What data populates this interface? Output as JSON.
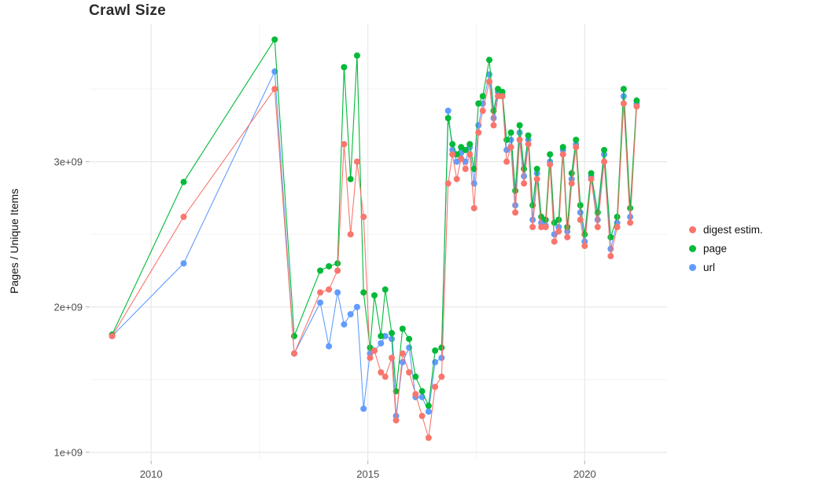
{
  "chart_data": {
    "type": "scatter",
    "title": "Crawl Size",
    "xlabel": "",
    "ylabel": "Pages / Unique Items",
    "grid": true,
    "legend_position": "right",
    "xlim": [
      2008.6,
      2021.9
    ],
    "ylim": [
      0.95,
      3.95
    ],
    "x_ticks": [
      2010,
      2015,
      2020
    ],
    "x_tick_labels": [
      "2010",
      "2015",
      "2020"
    ],
    "x_minor_ticks": [
      2012.5,
      2017.5
    ],
    "y_ticks": [
      1,
      2,
      3
    ],
    "y_tick_labels": [
      "1e+09",
      "2e+09",
      "3e+09"
    ],
    "y_minor_ticks": [
      1.5,
      2.5,
      3.5
    ],
    "y_values_in": "billions (1e+09)",
    "x": [
      2009.1,
      2010.75,
      2012.85,
      2013.3,
      2013.9,
      2014.1,
      2014.3,
      2014.45,
      2014.6,
      2014.75,
      2014.9,
      2015.05,
      2015.15,
      2015.3,
      2015.4,
      2015.55,
      2015.65,
      2015.8,
      2015.95,
      2016.1,
      2016.25,
      2016.4,
      2016.55,
      2016.7,
      2016.85,
      2016.95,
      2017.05,
      2017.15,
      2017.25,
      2017.35,
      2017.45,
      2017.55,
      2017.65,
      2017.8,
      2017.9,
      2018.0,
      2018.1,
      2018.2,
      2018.3,
      2018.4,
      2018.5,
      2018.6,
      2018.7,
      2018.8,
      2018.9,
      2019.0,
      2019.1,
      2019.2,
      2019.3,
      2019.4,
      2019.5,
      2019.6,
      2019.7,
      2019.8,
      2019.9,
      2020.0,
      2020.15,
      2020.3,
      2020.45,
      2020.6,
      2020.75,
      2020.9,
      2021.05,
      2021.2
    ],
    "series": [
      {
        "name": "digest estim.",
        "color": "#F8766D",
        "values": [
          1.8,
          2.62,
          3.5,
          1.68,
          2.1,
          2.12,
          2.25,
          3.12,
          2.5,
          3.0,
          2.62,
          1.65,
          1.7,
          1.55,
          1.52,
          1.65,
          1.22,
          1.68,
          1.55,
          1.4,
          1.25,
          1.1,
          1.45,
          1.52,
          2.85,
          3.05,
          2.88,
          3.02,
          2.95,
          3.05,
          2.68,
          3.2,
          3.35,
          3.55,
          3.25,
          3.45,
          3.45,
          3.0,
          3.1,
          2.65,
          3.15,
          2.85,
          3.12,
          2.55,
          2.88,
          2.55,
          2.55,
          2.98,
          2.45,
          2.52,
          3.05,
          2.48,
          2.85,
          3.1,
          2.6,
          2.42,
          2.88,
          2.55,
          3.0,
          2.35,
          2.55,
          3.4,
          2.58,
          3.38
        ]
      },
      {
        "name": "page",
        "color": "#00BA38",
        "values": [
          1.81,
          2.86,
          3.84,
          1.8,
          2.25,
          2.28,
          2.3,
          3.65,
          2.88,
          3.73,
          2.1,
          1.72,
          2.08,
          1.8,
          2.12,
          1.82,
          1.42,
          1.85,
          1.78,
          1.52,
          1.42,
          1.32,
          1.7,
          1.72,
          3.3,
          3.12,
          3.05,
          3.1,
          3.08,
          3.12,
          2.95,
          3.4,
          3.45,
          3.7,
          3.35,
          3.5,
          3.48,
          3.15,
          3.2,
          2.8,
          3.25,
          2.95,
          3.18,
          2.7,
          2.95,
          2.62,
          2.6,
          3.05,
          2.58,
          2.6,
          3.1,
          2.55,
          2.92,
          3.15,
          2.7,
          2.5,
          2.92,
          2.65,
          3.08,
          2.48,
          2.62,
          3.5,
          2.68,
          3.42
        ]
      },
      {
        "name": "url",
        "color": "#619CFF",
        "values": [
          1.8,
          2.3,
          3.62,
          1.68,
          2.03,
          1.73,
          2.1,
          1.88,
          1.95,
          2.0,
          1.3,
          1.68,
          1.7,
          1.75,
          1.8,
          1.78,
          1.25,
          1.62,
          1.72,
          1.38,
          1.38,
          1.28,
          1.62,
          1.65,
          3.35,
          3.08,
          3.0,
          3.06,
          3.0,
          3.1,
          2.85,
          3.25,
          3.4,
          3.6,
          3.3,
          3.48,
          3.46,
          3.08,
          3.15,
          2.7,
          3.2,
          2.9,
          3.15,
          2.6,
          2.92,
          2.58,
          2.56,
          3.0,
          2.5,
          2.55,
          3.08,
          2.52,
          2.88,
          3.12,
          2.65,
          2.45,
          2.9,
          2.6,
          3.05,
          2.4,
          2.58,
          3.45,
          2.62,
          3.4
        ]
      }
    ]
  },
  "legend": {
    "items": [
      {
        "label": "digest estim."
      },
      {
        "label": "page"
      },
      {
        "label": "url"
      }
    ]
  },
  "colors": {
    "grid_major": "#e8e8e8",
    "grid_minor": "#f3f3f3",
    "tick_text": "#4d4d4d",
    "digest": "#F8766D",
    "page": "#00BA38",
    "url": "#619CFF"
  }
}
